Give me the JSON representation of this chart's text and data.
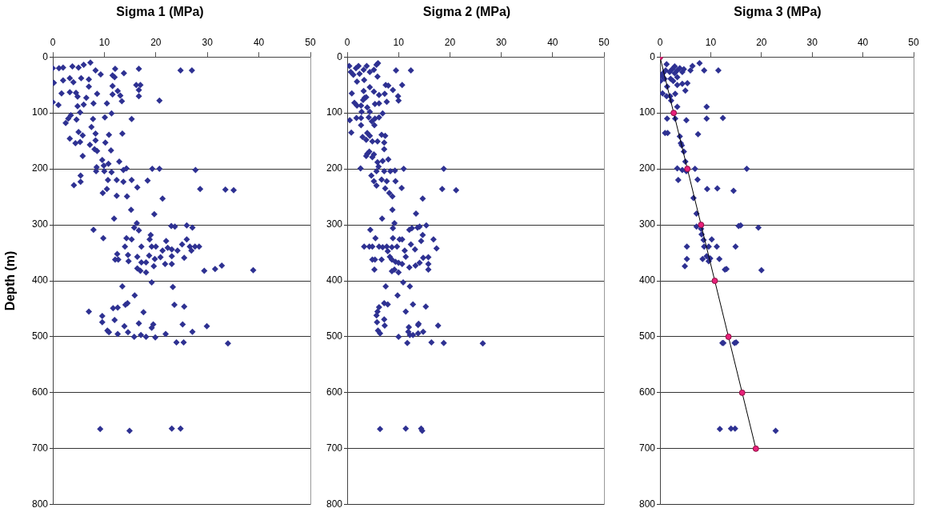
{
  "chart_data": [
    {
      "type": "scatter",
      "title": "Sigma 1 (MPa)",
      "ylabel": "Depth (m)",
      "xlim": [
        0,
        50
      ],
      "xticks": [
        0,
        10,
        20,
        30,
        40,
        50
      ],
      "ylim": [
        800,
        0
      ],
      "yticks": [
        0,
        100,
        200,
        300,
        400,
        500,
        600,
        700,
        800
      ],
      "grid": "y",
      "marker": "diamond",
      "series": [
        {
          "color": "#2e3192",
          "x": [
            0,
            1.2,
            2,
            3.8,
            5,
            6,
            7.3,
            8.3,
            9.3,
            12.1,
            13.8,
            16.7,
            24.8,
            27,
            0.2,
            2,
            3.3,
            4,
            5.5,
            7,
            11.6,
            12,
            16.2,
            17,
            16.7,
            16.7,
            11.6,
            12.6,
            13.1,
            13.4,
            11.6,
            20.7,
            7,
            1.7,
            3.3,
            4.5,
            4.8,
            6.5,
            8.6,
            0,
            1.1,
            4.8,
            6,
            7.9,
            10.5,
            5.3,
            11.4,
            3.5,
            3,
            2.5,
            4.6,
            7.8,
            10.1,
            15.3,
            7.5,
            5,
            5.8,
            8.3,
            10.9,
            13.5,
            3.3,
            4.4,
            5.3,
            8.3,
            10.2,
            7.2,
            8.1,
            11.3,
            8.6,
            5.8,
            9.6,
            12.9,
            9.9,
            8.5,
            10.8,
            8.4,
            10,
            11.4,
            13.7,
            14.3,
            19.3,
            20.7,
            27.7,
            5.4,
            4.1,
            5.4,
            10.7,
            12.4,
            13.7,
            15.3,
            18.4,
            16.4,
            10.5,
            9.7,
            28.6,
            33.5,
            35.1,
            12.4,
            14.4,
            21.3,
            15.2,
            19.7,
            11.9,
            16.3,
            15.8,
            16.7,
            23,
            23.7,
            26,
            27.1,
            7.9,
            9.8,
            14.3,
            15.3,
            19,
            18.8,
            22,
            26,
            25.1,
            14,
            17.2,
            19.2,
            20,
            21.3,
            22.3,
            23.1,
            24.2,
            26.6,
            27.6,
            28.4,
            26.9,
            12.5,
            12.1,
            12.7,
            14.6,
            14.7,
            16.4,
            18.7,
            19.8,
            20.9,
            23.1,
            25.5,
            17.2,
            18.1,
            21.8,
            23.1,
            16.4,
            17,
            18.1,
            19.6,
            29.4,
            31.5,
            32.8,
            38.9,
            19.2,
            13.5,
            23.3,
            15.9,
            7,
            9.6,
            11.7,
            12.6,
            14.1,
            14.5,
            23.6,
            25.5,
            17.6,
            9.6,
            12,
            16.7,
            19.5,
            19.2,
            13.9,
            10.6,
            10.9,
            12.6,
            14.6,
            15.8,
            17.1,
            18.1,
            19.9,
            21.9,
            25.2,
            27.1,
            29.9,
            24,
            25.4,
            34,
            9.2,
            14.9,
            23.1,
            24.8
          ],
          "values": [
            20,
            20,
            19,
            17,
            19,
            14,
            10,
            24,
            31,
            21,
            29,
            21,
            24,
            24,
            46,
            42,
            38,
            45,
            38,
            40,
            33,
            36,
            50,
            50,
            59,
            70,
            52,
            61,
            69,
            79,
            67,
            78,
            53,
            65,
            63,
            64,
            71,
            73,
            66,
            81,
            86,
            88,
            85,
            83,
            83,
            99,
            101,
            104,
            110,
            118,
            112,
            111,
            108,
            111,
            125,
            134,
            140,
            137,
            139,
            137,
            146,
            154,
            152,
            149,
            153,
            157,
            165,
            167,
            168,
            177,
            184,
            187,
            194,
            197,
            191,
            204,
            204,
            206,
            202,
            199,
            200,
            200,
            202,
            212,
            229,
            223,
            220,
            220,
            223,
            220,
            221,
            233,
            236,
            243,
            236,
            237,
            238,
            248,
            249,
            253,
            273,
            281,
            289,
            297,
            305,
            310,
            302,
            303,
            301,
            305,
            309,
            324,
            324,
            326,
            318,
            326,
            329,
            326,
            335,
            339,
            339,
            339,
            339,
            346,
            341,
            344,
            346,
            339,
            339,
            339,
            346,
            352,
            362,
            362,
            354,
            365,
            357,
            355,
            361,
            358,
            356,
            359,
            367,
            367,
            370,
            370,
            378,
            382,
            385,
            374,
            382,
            379,
            373,
            381,
            403,
            410,
            411,
            426,
            455,
            463,
            449,
            448,
            443,
            440,
            443,
            446,
            456,
            474,
            470,
            476,
            478,
            484,
            481,
            489,
            492,
            495,
            492,
            500,
            497,
            500,
            501,
            495,
            478,
            491,
            481,
            510,
            510,
            512,
            665,
            668,
            664,
            664
          ]
        }
      ]
    },
    {
      "type": "scatter",
      "title": "Sigma 2 (MPa)",
      "xlim": [
        0,
        50
      ],
      "xticks": [
        0,
        10,
        20,
        30,
        40,
        50
      ],
      "ylim": [
        800,
        0
      ],
      "yticks": [
        0,
        100,
        200,
        300,
        400,
        500,
        600,
        700,
        800
      ],
      "grid": "y",
      "marker": "diamond",
      "series": [
        {
          "color": "#2e3192",
          "x": [
            0.4,
            0.7,
            1.2,
            1.7,
            2.2,
            2.4,
            3.2,
            3.8,
            1.9,
            3.3,
            4.4,
            5.2,
            5.7,
            6,
            5.9,
            9.5,
            12.4,
            10.7,
            7.5,
            8,
            8.9,
            9.9,
            10,
            7.3,
            7.7,
            6.2,
            5.2,
            4.4,
            3.2,
            3.4,
            3.1,
            0.9,
            1.4,
            1.9,
            2.7,
            3.9,
            5.4,
            6.2,
            3.7,
            0.5,
            0.8,
            1.8,
            2.7,
            2.8,
            2.7,
            3,
            3.7,
            4.2,
            4.4,
            4.8,
            5.3,
            5.4,
            3.9,
            4.4,
            4.9,
            5.9,
            6.7,
            7.4,
            7.2,
            7.2,
            3.9,
            4.3,
            3.7,
            5.2,
            4.9,
            6.2,
            6.9,
            8,
            5.9,
            6.9,
            6.1,
            5.7,
            2.6,
            7.2,
            8.4,
            9.3,
            11,
            18.8,
            4.7,
            5.2,
            5.7,
            6.7,
            7.7,
            9.4,
            7.4,
            8.2,
            8.8,
            10.6,
            18.5,
            21.2,
            14.7,
            8.8,
            13.4,
            6.8,
            9.2,
            8.9,
            4.5,
            12.1,
            12.6,
            13.7,
            14.1,
            15.4,
            5.5,
            8.9,
            10.2,
            10.7,
            14.7,
            14.4,
            16.8,
            17.4,
            3.3,
            4.3,
            4.9,
            6.2,
            6.9,
            7.7,
            8.7,
            9.7,
            7.9,
            8.3,
            12.4,
            13.2,
            11.2,
            11.4,
            4.9,
            5.4,
            6.7,
            8.7,
            9.4,
            10,
            10.7,
            14.1,
            14.8,
            15.8,
            15.8,
            13.3,
            12.1,
            5.3,
            8.7,
            9.2,
            10,
            15.8,
            10.9,
            7.5,
            12.2,
            9.8,
            7.2,
            7.9,
            6.2,
            5.9,
            5.7,
            5.8,
            7.2,
            7.3,
            6,
            6.4,
            11.4,
            12.8,
            15.3,
            12,
            11.9,
            12.2,
            12.8,
            13.8,
            13.9,
            13.8,
            14.8,
            17.7,
            10,
            11.7,
            16.4,
            18.8,
            26.4,
            6.4,
            11.4,
            14.4,
            14.6
          ],
          "values": [
            16,
            27,
            32,
            20,
            16,
            30,
            23,
            16,
            44,
            41,
            27,
            23,
            14,
            11,
            35,
            24,
            24,
            50,
            50,
            51,
            59,
            70,
            78,
            66,
            80,
            68,
            62,
            54,
            61,
            73,
            77,
            65,
            82,
            87,
            87,
            90,
            84,
            83,
            72,
            113,
            135,
            109,
            109,
            98,
            122,
            143,
            148,
            108,
            98,
            115,
            122,
            110,
            136,
            141,
            151,
            151,
            139,
            141,
            153,
            165,
            173,
            169,
            177,
            174,
            179,
            108,
            101,
            183,
            188,
            186,
            196,
            204,
            199,
            204,
            204,
            203,
            200,
            200,
            212,
            222,
            230,
            219,
            222,
            222,
            235,
            243,
            249,
            234,
            236,
            238,
            253,
            273,
            280,
            289,
            297,
            306,
            309,
            309,
            306,
            305,
            303,
            301,
            324,
            324,
            326,
            326,
            318,
            329,
            326,
            342,
            339,
            339,
            339,
            339,
            340,
            339,
            340,
            339,
            347,
            357,
            335,
            344,
            346,
            357,
            362,
            362,
            362,
            362,
            366,
            368,
            370,
            368,
            359,
            358,
            370,
            373,
            376,
            380,
            383,
            380,
            385,
            380,
            403,
            410,
            410,
            426,
            440,
            442,
            447,
            455,
            462,
            474,
            469,
            480,
            489,
            494,
            455,
            442,
            446,
            483,
            491,
            497,
            497,
            479,
            477,
            494,
            491,
            480,
            500,
            511,
            510,
            511,
            512,
            665,
            664,
            664,
            668
          ]
        }
      ]
    },
    {
      "type": "scatter",
      "title": "Sigma 3 (MPa)",
      "xlim": [
        0,
        50
      ],
      "xticks": [
        0,
        10,
        20,
        30,
        40,
        50
      ],
      "ylim": [
        800,
        0
      ],
      "yticks": [
        0,
        100,
        200,
        300,
        400,
        500,
        600,
        700,
        800
      ],
      "grid": "y",
      "marker": "diamond",
      "series": [
        {
          "color": "#2e3192",
          "x": [
            0.4,
            0.1,
            0.6,
            1.1,
            1.3,
            1.9,
            2.4,
            2.9,
            3.4,
            3.9,
            4.4,
            4.7,
            2.9,
            2.1,
            2.6,
            3.4,
            0.9,
            1.4,
            3.4,
            4.4,
            5.4,
            5,
            6,
            6.4,
            7.8,
            8.7,
            11.5,
            0.5,
            1.3,
            2,
            3,
            2.2,
            3.4,
            9.2,
            1.4,
            3,
            5.2,
            9.2,
            12.4,
            1,
            1.5,
            7.5,
            3.9,
            4.1,
            4.3,
            4.7,
            5,
            3.4,
            4.4,
            5.2,
            6.9,
            17.1,
            3.6,
            7.4,
            9.3,
            11.3,
            14.5,
            6.6,
            7.2,
            7.2,
            8.1,
            8.2,
            8.6,
            8.7,
            9.6,
            10.2,
            11.2,
            15.5,
            15.9,
            19.4,
            14.9,
            5.3,
            5.3,
            4.9,
            8.4,
            9.2,
            9.6,
            9.9,
            11.7,
            12.8,
            13.1,
            20,
            12.3,
            12.5,
            14.7,
            15,
            11.8,
            14,
            14.8,
            22.8
          ],
          "values": [
            34,
            43,
            29,
            24,
            13,
            27,
            22,
            17,
            24,
            20,
            27,
            22,
            29,
            39,
            43,
            36,
            39,
            53,
            50,
            48,
            47,
            60,
            24,
            16,
            11,
            24,
            24,
            65,
            70,
            70,
            66,
            78,
            89,
            89,
            110,
            110,
            113,
            110,
            109,
            136,
            136,
            138,
            142,
            154,
            158,
            169,
            187,
            199,
            202,
            204,
            200,
            200,
            220,
            219,
            236,
            235,
            239,
            252,
            280,
            303,
            307,
            317,
            327,
            339,
            339,
            326,
            339,
            302,
            301,
            305,
            339,
            339,
            361,
            374,
            361,
            356,
            365,
            360,
            361,
            380,
            379,
            381,
            511,
            511,
            511,
            510,
            665,
            664,
            664,
            668
          ]
        },
        {
          "type": "line",
          "marker": "circle",
          "color": "#e8207a",
          "x": [
            0,
            2.7,
            5.4,
            8.1,
            10.8,
            13.5,
            16.2,
            18.9
          ],
          "values": [
            0,
            100,
            200,
            300,
            400,
            500,
            600,
            700
          ]
        }
      ]
    }
  ]
}
